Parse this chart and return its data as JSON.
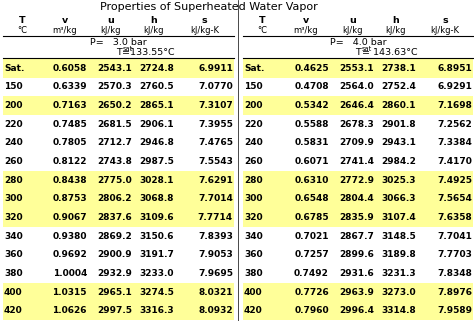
{
  "title": "Properties of Superheated Water Vapor",
  "col_headers": [
    "T",
    "v",
    "u",
    "h",
    "s"
  ],
  "col_units_top": [
    "°C",
    "m³/kg",
    "kJ/kg",
    "kJ/kg",
    "kJ/kg-K"
  ],
  "table1": {
    "pressure": "P=   3.0 bar",
    "tsat_label": "T",
    "tsat_sub": "sat",
    "tsat_val": "=133.55°C",
    "rows": [
      [
        "Sat.",
        "0.6058",
        "2543.1",
        "2724.8",
        "6.9911"
      ],
      [
        "150",
        "0.6339",
        "2570.3",
        "2760.5",
        "7.0770"
      ],
      [
        "200",
        "0.7163",
        "2650.2",
        "2865.1",
        "7.3107"
      ],
      [
        "220",
        "0.7485",
        "2681.5",
        "2906.1",
        "7.3955"
      ],
      [
        "240",
        "0.7805",
        "2712.7",
        "2946.8",
        "7.4765"
      ],
      [
        "260",
        "0.8122",
        "2743.8",
        "2987.5",
        "7.5543"
      ],
      [
        "280",
        "0.8438",
        "2775.0",
        "3028.1",
        "7.6291"
      ],
      [
        "300",
        "0.8753",
        "2806.2",
        "3068.8",
        "7.7014"
      ],
      [
        "320",
        "0.9067",
        "2837.6",
        "3109.6",
        "7.7714"
      ],
      [
        "340",
        "0.9380",
        "2869.2",
        "3150.6",
        "7.8393"
      ],
      [
        "360",
        "0.9692",
        "2900.9",
        "3191.7",
        "7.9053"
      ],
      [
        "380",
        "1.0004",
        "2932.9",
        "3233.0",
        "7.9695"
      ],
      [
        "400",
        "1.0315",
        "2965.1",
        "3274.5",
        "8.0321"
      ],
      [
        "420",
        "1.0626",
        "2997.5",
        "3316.3",
        "8.0932"
      ]
    ],
    "yellow_rows": [
      0,
      2,
      6,
      7,
      8,
      12,
      13
    ]
  },
  "table2": {
    "pressure": "P=   4.0 bar",
    "tsat_label": "T",
    "tsat_sub": "sat",
    "tsat_val": "= 143.63°C",
    "rows": [
      [
        "Sat.",
        "0.4625",
        "2553.1",
        "2738.1",
        "6.8951"
      ],
      [
        "150",
        "0.4708",
        "2564.0",
        "2752.4",
        "6.9291"
      ],
      [
        "200",
        "0.5342",
        "2646.4",
        "2860.1",
        "7.1698"
      ],
      [
        "220",
        "0.5588",
        "2678.3",
        "2901.8",
        "7.2562"
      ],
      [
        "240",
        "0.5831",
        "2709.9",
        "2943.1",
        "7.3384"
      ],
      [
        "260",
        "0.6071",
        "2741.4",
        "2984.2",
        "7.4170"
      ],
      [
        "280",
        "0.6310",
        "2772.9",
        "3025.3",
        "7.4925"
      ],
      [
        "300",
        "0.6548",
        "2804.4",
        "3066.3",
        "7.5654"
      ],
      [
        "320",
        "0.6785",
        "2835.9",
        "3107.4",
        "7.6358"
      ],
      [
        "340",
        "0.7021",
        "2867.7",
        "3148.5",
        "7.7041"
      ],
      [
        "360",
        "0.7257",
        "2899.6",
        "3189.8",
        "7.7703"
      ],
      [
        "380",
        "0.7492",
        "2931.6",
        "3231.3",
        "7.8348"
      ],
      [
        "400",
        "0.7726",
        "2963.9",
        "3273.0",
        "7.8976"
      ],
      [
        "420",
        "0.7960",
        "2996.4",
        "3314.8",
        "7.9589"
      ]
    ],
    "yellow_rows": [
      0,
      2,
      6,
      7,
      8,
      12,
      13
    ]
  },
  "yellow_color": "#FFFF99",
  "white_color": "#FFFFFF",
  "text_color": "#000000",
  "fig_width": 4.74,
  "fig_height": 3.21,
  "dpi": 100
}
